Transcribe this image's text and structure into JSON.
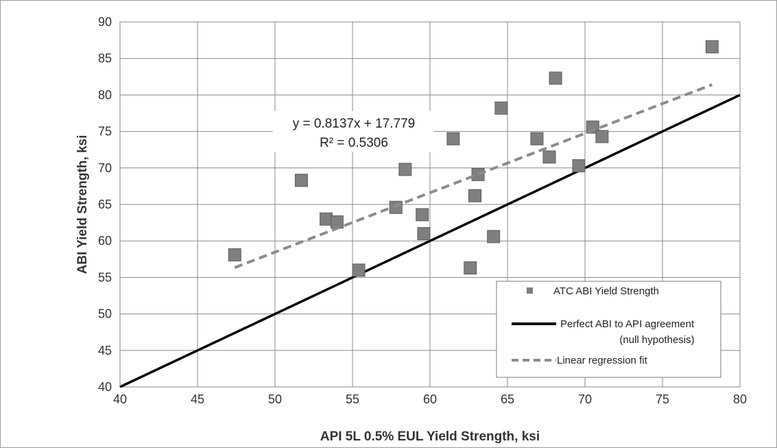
{
  "chart_data": {
    "type": "scatter",
    "xlabel": "API 5L 0.5% EUL Yield Strength, ksi",
    "ylabel": "ABI Yield Strength, ksi",
    "xlim": [
      40,
      80
    ],
    "ylim": [
      40,
      90
    ],
    "xticks": [
      40,
      45,
      50,
      55,
      60,
      65,
      70,
      75,
      80
    ],
    "yticks": [
      40,
      45,
      50,
      55,
      60,
      65,
      70,
      75,
      80,
      85,
      90
    ],
    "grid": true,
    "legend_position": "bottom-right",
    "series": [
      {
        "name": "ATC ABI Yield Strength",
        "kind": "points",
        "marker": "square",
        "color": "#7f7f7f",
        "points": [
          {
            "x": 47.4,
            "y": 58.1
          },
          {
            "x": 51.7,
            "y": 68.3
          },
          {
            "x": 53.3,
            "y": 63.0
          },
          {
            "x": 54.0,
            "y": 62.6
          },
          {
            "x": 55.4,
            "y": 56.0
          },
          {
            "x": 57.8,
            "y": 64.6
          },
          {
            "x": 58.4,
            "y": 69.8
          },
          {
            "x": 59.5,
            "y": 63.6
          },
          {
            "x": 59.6,
            "y": 61.0
          },
          {
            "x": 61.5,
            "y": 74.0
          },
          {
            "x": 62.6,
            "y": 56.3
          },
          {
            "x": 62.9,
            "y": 66.2
          },
          {
            "x": 63.1,
            "y": 69.1
          },
          {
            "x": 64.1,
            "y": 60.6
          },
          {
            "x": 64.6,
            "y": 78.2
          },
          {
            "x": 66.9,
            "y": 74.0
          },
          {
            "x": 67.7,
            "y": 71.5
          },
          {
            "x": 68.1,
            "y": 82.3
          },
          {
            "x": 69.6,
            "y": 70.3
          },
          {
            "x": 70.5,
            "y": 75.6
          },
          {
            "x": 71.1,
            "y": 74.3
          },
          {
            "x": 78.2,
            "y": 86.6
          }
        ]
      },
      {
        "name": "Perfect ABI to API agreement",
        "name_line2": "(null hypothesis)",
        "kind": "line",
        "style": "solid",
        "color": "#000000",
        "points": [
          {
            "x": 40,
            "y": 40
          },
          {
            "x": 80,
            "y": 80
          }
        ]
      },
      {
        "name": "Linear regression fit",
        "kind": "line",
        "style": "dashed",
        "color": "#8c8c8c",
        "points": [
          {
            "x": 47.4,
            "y": 56.35
          },
          {
            "x": 78.2,
            "y": 81.41
          }
        ]
      }
    ],
    "annotations": [
      {
        "text": "y = 0.8137x + 17.779"
      },
      {
        "text": "R² = 0.5306"
      }
    ]
  }
}
